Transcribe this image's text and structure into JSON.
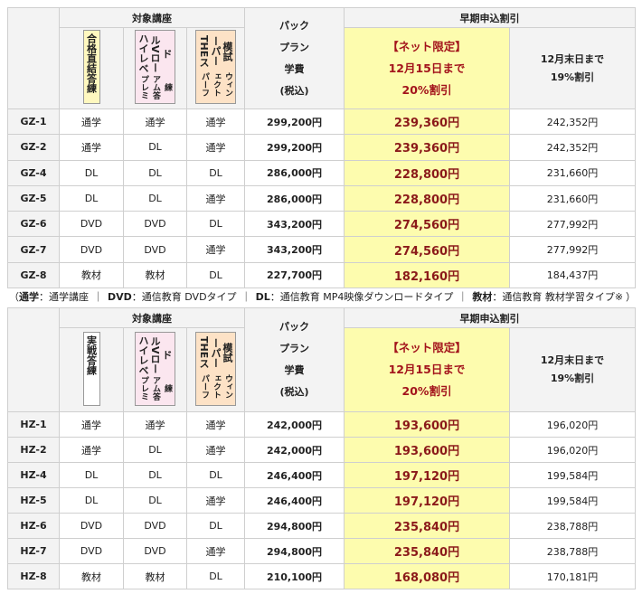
{
  "tables": [
    {
      "header": {
        "courses": "対象講座",
        "pack": [
          "パック",
          "プラン",
          "学費",
          "(税込)"
        ],
        "early": "早期申込割引",
        "net": [
          "【ネット限定】",
          "12月15日まで",
          "20%割引"
        ],
        "end": [
          "12月末日まで",
          "19%割引"
        ]
      },
      "course_labels": [
        {
          "lines": [
            "合格直結答練"
          ],
          "color": "#fff8bf"
        },
        {
          "lines": [
            "ハイレベルVロード",
            "プレミアム答練"
          ],
          "color": "#fbe6ef"
        },
        {
          "lines": [
            "THEスーパー模試",
            "パーフェクトウィン"
          ],
          "color": "#fde2c6"
        }
      ],
      "rows": [
        [
          "GZ-1",
          "通学",
          "通学",
          "通学",
          "299,200円",
          "239,360円",
          "242,352円"
        ],
        [
          "GZ-2",
          "通学",
          "DL",
          "通学",
          "299,200円",
          "239,360円",
          "242,352円"
        ],
        [
          "GZ-4",
          "DL",
          "DL",
          "DL",
          "286,000円",
          "228,800円",
          "231,660円"
        ],
        [
          "GZ-5",
          "DL",
          "DL",
          "通学",
          "286,000円",
          "228,800円",
          "231,660円"
        ],
        [
          "GZ-6",
          "DVD",
          "DVD",
          "DL",
          "343,200円",
          "274,560円",
          "277,992円"
        ],
        [
          "GZ-7",
          "DVD",
          "DVD",
          "通学",
          "343,200円",
          "274,560円",
          "277,992円"
        ],
        [
          "GZ-8",
          "教材",
          "教材",
          "DL",
          "227,700円",
          "182,160円",
          "184,437円"
        ]
      ]
    },
    {
      "header": {
        "courses": "対象講座",
        "pack": [
          "パック",
          "プラン",
          "学費",
          "(税込)"
        ],
        "early": "早期申込割引",
        "net": [
          "【ネット限定】",
          "12月15日まで",
          "20%割引"
        ],
        "end": [
          "12月末日まで",
          "19%割引"
        ]
      },
      "course_labels": [
        {
          "lines": [
            "実戦答練"
          ],
          "color": "#ffffff"
        },
        {
          "lines": [
            "ハイレベルVロード",
            "プレミアム答練"
          ],
          "color": "#fbe6ef"
        },
        {
          "lines": [
            "THEスーパー模試",
            "パーフェクトウィン"
          ],
          "color": "#fde2c6"
        }
      ],
      "rows": [
        [
          "HZ-1",
          "通学",
          "通学",
          "通学",
          "242,000円",
          "193,600円",
          "196,020円"
        ],
        [
          "HZ-2",
          "通学",
          "DL",
          "通学",
          "242,000円",
          "193,600円",
          "196,020円"
        ],
        [
          "HZ-4",
          "DL",
          "DL",
          "DL",
          "246,400円",
          "197,120円",
          "199,584円"
        ],
        [
          "HZ-5",
          "DL",
          "DL",
          "通学",
          "246,400円",
          "197,120円",
          "199,584円"
        ],
        [
          "HZ-6",
          "DVD",
          "DVD",
          "DL",
          "294,800円",
          "235,840円",
          "238,788円"
        ],
        [
          "HZ-7",
          "DVD",
          "DVD",
          "通学",
          "294,800円",
          "235,840円",
          "238,788円"
        ],
        [
          "HZ-8",
          "教材",
          "教材",
          "DL",
          "210,100円",
          "168,080円",
          "170,181円"
        ]
      ]
    }
  ],
  "note": {
    "open": "（",
    "separator": "｜",
    "close": "）",
    "items": [
      [
        "通学",
        "：通学講座"
      ],
      [
        "DVD",
        "：通信教育 DVDタイプ"
      ],
      [
        "DL",
        "：通信教育 MP4映像ダウンロードタイプ"
      ],
      [
        "教材",
        "：通信教育 教材学習タイプ※"
      ]
    ]
  }
}
